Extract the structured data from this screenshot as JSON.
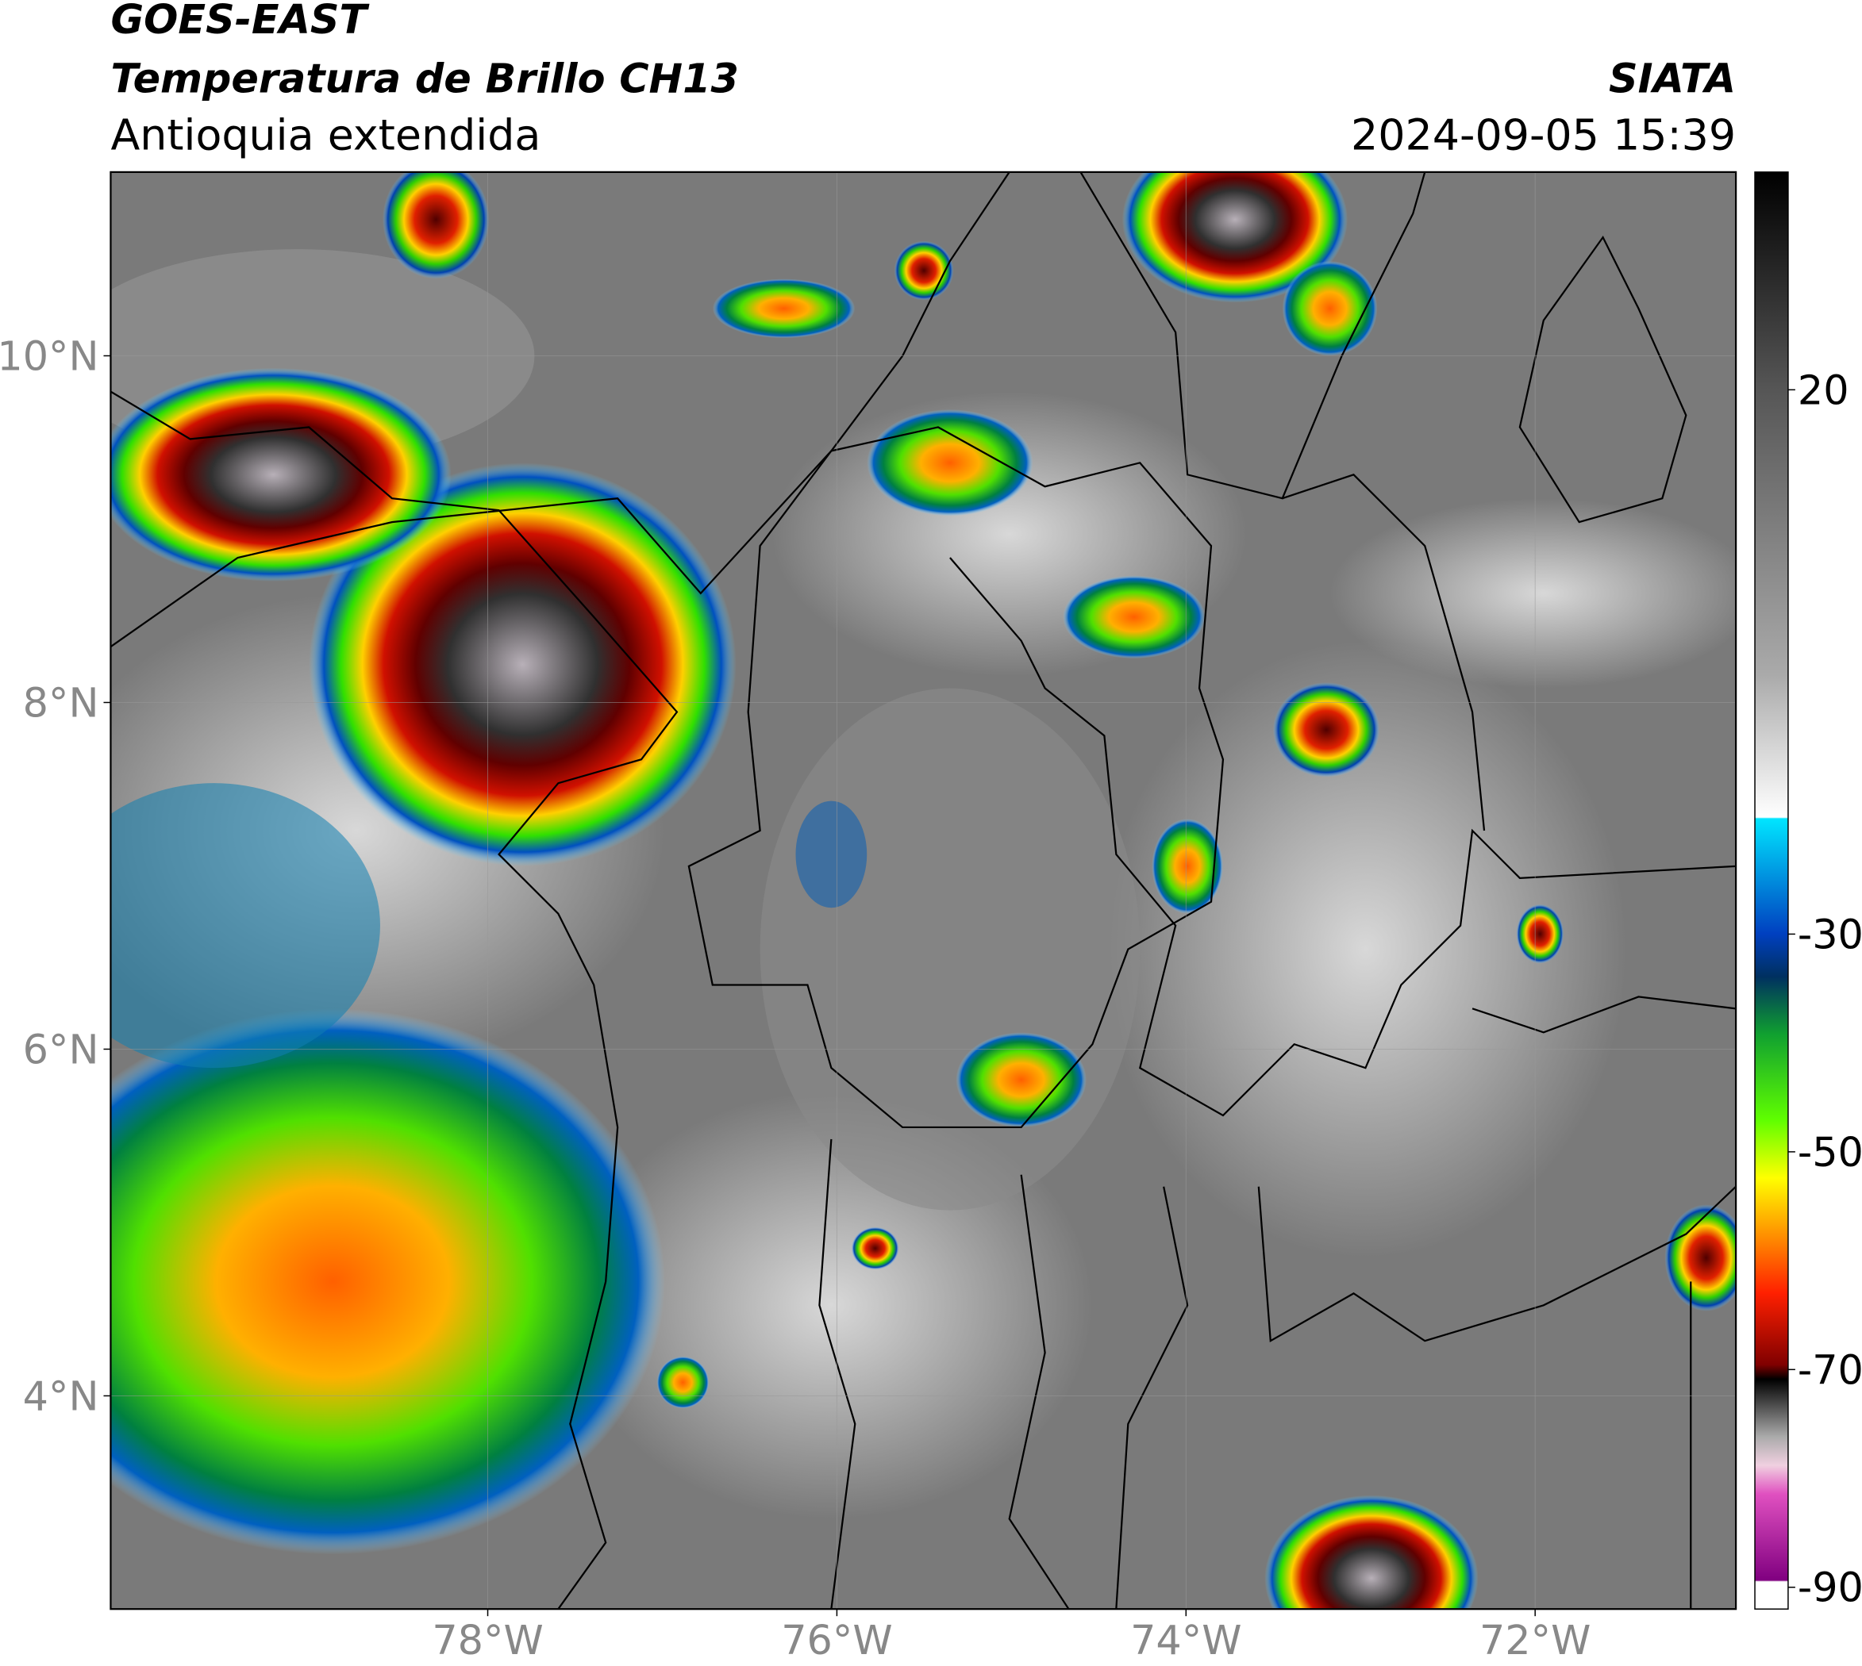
{
  "chart_data": {
    "type": "map",
    "title": "GOES-EAST",
    "subtitle": "Temperatura de Brillo CH13",
    "region": "Antioquia extendida",
    "source": "SIATA",
    "datetime": "2024-09-05 15:39",
    "xlim": [
      -80.16,
      -70.85
    ],
    "ylim": [
      2.77,
      11.06
    ],
    "xticks": [
      {
        "value": -78,
        "label": "78°W"
      },
      {
        "value": -76,
        "label": "76°W"
      },
      {
        "value": -74,
        "label": "74°W"
      },
      {
        "value": -72,
        "label": "72°W"
      }
    ],
    "yticks": [
      {
        "value": 10,
        "label": "10°N"
      },
      {
        "value": 8,
        "label": "8°N"
      },
      {
        "value": 6,
        "label": "6°N"
      },
      {
        "value": 4,
        "label": "4°N"
      }
    ],
    "grid": true,
    "colorbar": {
      "lim": [
        -92,
        40
      ],
      "ticks": [
        20,
        -30,
        -50,
        -70,
        -90
      ]
    }
  }
}
